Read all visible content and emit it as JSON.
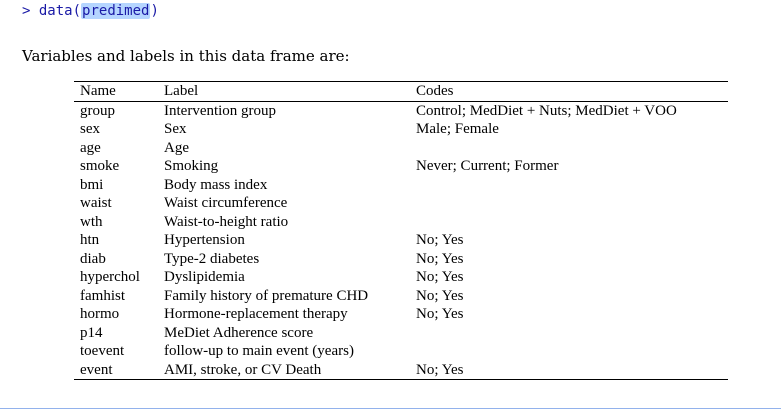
{
  "console": {
    "prompt": ">",
    "func": "data(",
    "arg": "predimed",
    "close": ")"
  },
  "intro_text": "Variables and labels in this data frame are:",
  "table": {
    "headers": [
      "Name",
      "Label",
      "Codes"
    ],
    "rows": [
      {
        "name": "group",
        "label": "Intervention group",
        "codes": "Control; MedDiet + Nuts; MedDiet + VOO"
      },
      {
        "name": "sex",
        "label": "Sex",
        "codes": "Male; Female"
      },
      {
        "name": "age",
        "label": "Age",
        "codes": ""
      },
      {
        "name": "smoke",
        "label": "Smoking",
        "codes": "Never; Current; Former"
      },
      {
        "name": "bmi",
        "label": "Body mass index",
        "codes": ""
      },
      {
        "name": "waist",
        "label": "Waist circumference",
        "codes": ""
      },
      {
        "name": "wth",
        "label": "Waist-to-height ratio",
        "codes": ""
      },
      {
        "name": "htn",
        "label": "Hypertension",
        "codes": "No; Yes"
      },
      {
        "name": "diab",
        "label": "Type-2 diabetes",
        "codes": "No; Yes"
      },
      {
        "name": "hyperchol",
        "label": "Dyslipidemia",
        "codes": "No; Yes"
      },
      {
        "name": "famhist",
        "label": "Family history of premature CHD",
        "codes": "No; Yes"
      },
      {
        "name": "hormo",
        "label": "Hormone-replacement therapy",
        "codes": "No; Yes"
      },
      {
        "name": "p14",
        "label": "MeDiet Adherence score",
        "codes": ""
      },
      {
        "name": "toevent",
        "label": "follow-up to main event (years)",
        "codes": ""
      },
      {
        "name": "event",
        "label": "AMI, stroke, or CV Death",
        "codes": "No; Yes"
      }
    ]
  }
}
